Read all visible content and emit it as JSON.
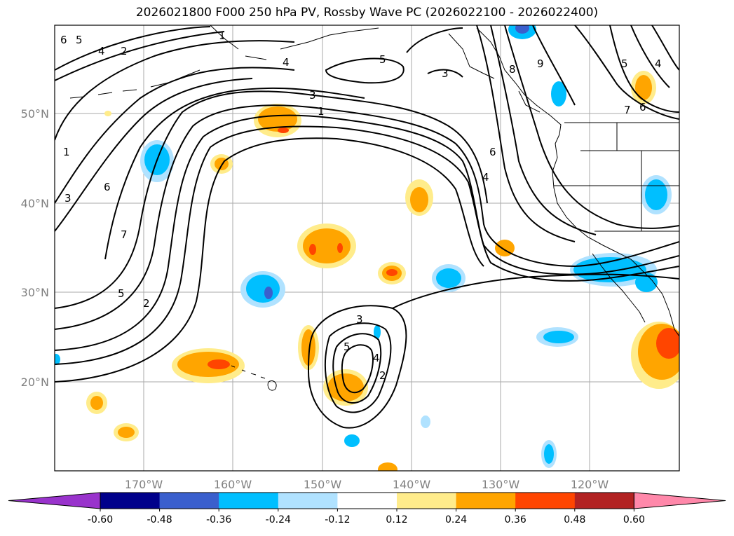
{
  "title": "2026021800 F000 250 hPa PV, Rossby Wave PC (2026022100 - 2026022400)",
  "map": {
    "lat_labels": [
      "50°N",
      "40°N",
      "30°N",
      "20°N"
    ],
    "lon_labels": [
      "170°W",
      "160°W",
      "150°W",
      "140°W",
      "130°W",
      "120°W"
    ],
    "contour_labels": [
      "6",
      "5",
      "4",
      "2",
      "1",
      "4",
      "5",
      "3",
      "1",
      "3",
      "8",
      "9",
      "5",
      "4",
      "7",
      "6",
      "1",
      "3",
      "6",
      "7",
      "5",
      "2",
      "6",
      "4",
      "3",
      "5",
      "4",
      "2"
    ]
  },
  "colorbar": {
    "colors": [
      "#9933cc",
      "#00008b",
      "#3a5fcd",
      "#00bfff",
      "#b0e2ff",
      "#ffffff",
      "#ffec8b",
      "#ffa500",
      "#ff4500",
      "#b22222",
      "#ff88aa"
    ],
    "labels": [
      "-0.60",
      "-0.48",
      "-0.36",
      "-0.24",
      "-0.12",
      "0.12",
      "0.24",
      "0.36",
      "0.48",
      "0.60"
    ]
  }
}
